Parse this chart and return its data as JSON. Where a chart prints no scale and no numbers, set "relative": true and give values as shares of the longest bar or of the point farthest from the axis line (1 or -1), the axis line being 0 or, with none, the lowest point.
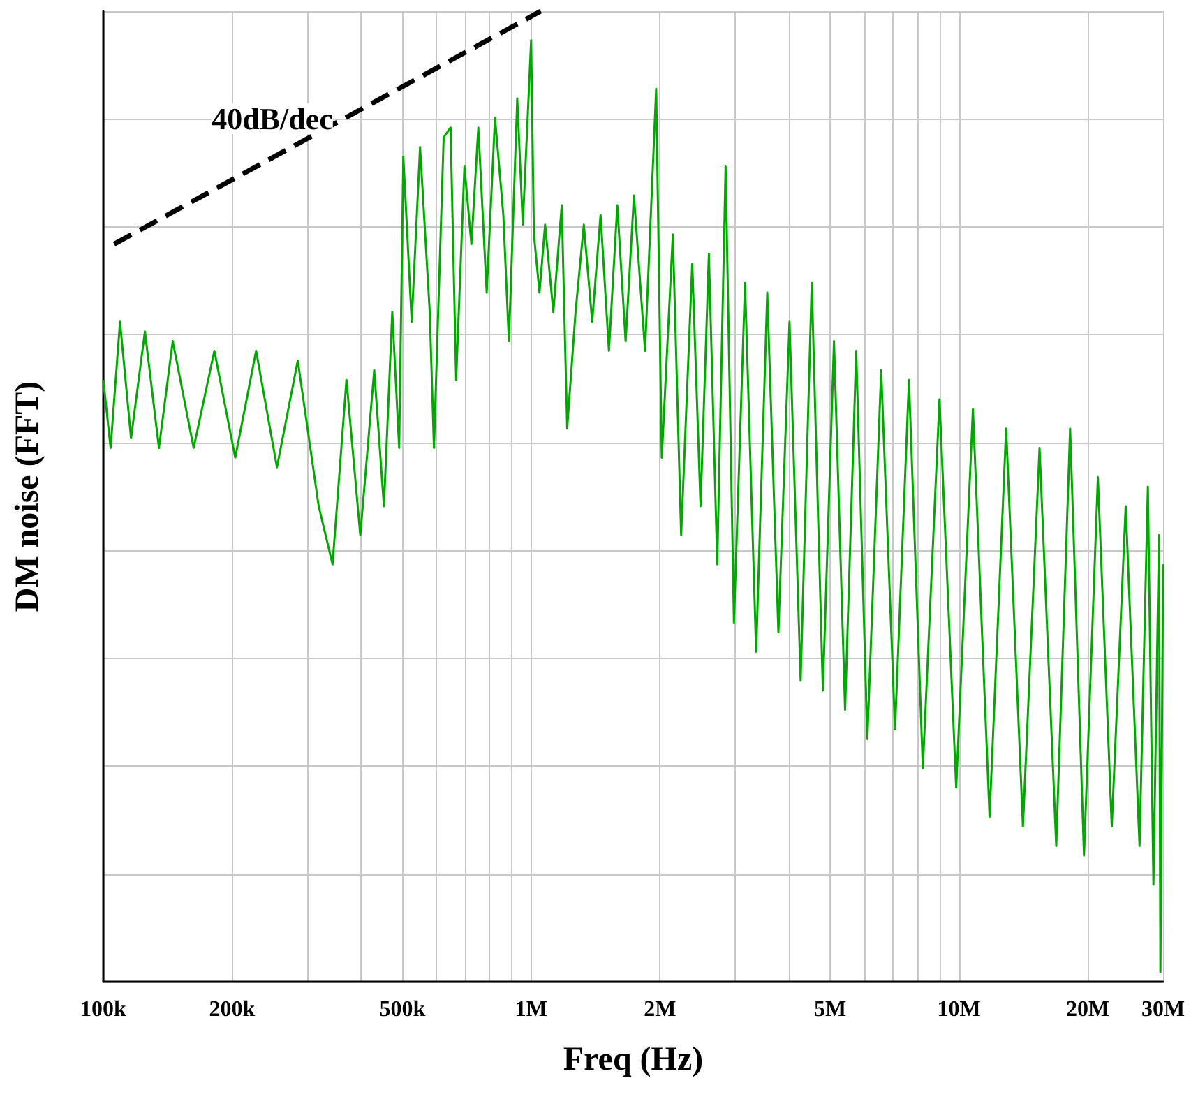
{
  "chart_data": {
    "type": "line",
    "relative": true,
    "xlabel": "Freq (Hz)",
    "ylabel": "DM noise (FFT)",
    "log": "x",
    "grid": true,
    "marker": "none",
    "xlim": [
      100000,
      30000000
    ],
    "xticks": [
      {
        "value": 100000,
        "label": "100k"
      },
      {
        "value": 200000,
        "label": "200k"
      },
      {
        "value": 300000,
        "label": null
      },
      {
        "value": 400000,
        "label": null
      },
      {
        "value": 500000,
        "label": "500k"
      },
      {
        "value": 600000,
        "label": null
      },
      {
        "value": 700000,
        "label": null
      },
      {
        "value": 800000,
        "label": null
      },
      {
        "value": 900000,
        "label": null
      },
      {
        "value": 1000000,
        "label": "1M"
      },
      {
        "value": 2000000,
        "label": "2M"
      },
      {
        "value": 3000000,
        "label": null
      },
      {
        "value": 4000000,
        "label": null
      },
      {
        "value": 5000000,
        "label": "5M"
      },
      {
        "value": 6000000,
        "label": null
      },
      {
        "value": 7000000,
        "label": null
      },
      {
        "value": 8000000,
        "label": null
      },
      {
        "value": 9000000,
        "label": null
      },
      {
        "value": 10000000,
        "label": "10M"
      },
      {
        "value": 20000000,
        "label": "20M"
      },
      {
        "value": 30000000,
        "label": "30M"
      }
    ],
    "annotations": [
      "40dB/dec"
    ],
    "series": [
      {
        "color": "#00a800",
        "line_style": "solid",
        "x": [
          100000,
          104000,
          109400,
          116100,
          125100,
          134900,
          145300,
          162600,
          181800,
          203400,
          227600,
          254600,
          284800,
          318700,
          343400,
          370100,
          398700,
          429700,
          452800,
          473600,
          491500,
          502600,
          525800,
          550000,
          579400,
          592700,
          624500,
          648100,
          667800,
          698400,
          725000,
          752600,
          787200,
          823300,
          861000,
          887200,
          928000,
          956100,
          1000000,
          1015000,
          1046000,
          1078000,
          1127000,
          1179000,
          1214000,
          1270000,
          1328000,
          1389000,
          1453000,
          1520000,
          1590000,
          1663000,
          1739000,
          1846000,
          1960000,
          2020000,
          2144000,
          2242000,
          2380000,
          2489000,
          2603000,
          2723000,
          2848000,
          2979000,
          3162000,
          3357000,
          3564000,
          3784000,
          4017000,
          4265000,
          4528000,
          4807000,
          5104000,
          5418000,
          5752000,
          6107000,
          6579000,
          7089000,
          7640000,
          8233000,
          9005000,
          9851000,
          10780000,
          11790000,
          12890000,
          14110000,
          15430000,
          16880000,
          18190000,
          19600000,
          21120000,
          22760000,
          24530000,
          26430000,
          27640000,
          28480000,
          29350000,
          29570000,
          30000000
        ],
        "values": [
          0.62,
          0.55,
          0.68,
          0.56,
          0.67,
          0.55,
          0.66,
          0.55,
          0.65,
          0.54,
          0.65,
          0.53,
          0.64,
          0.49,
          0.43,
          0.62,
          0.46,
          0.63,
          0.49,
          0.69,
          0.55,
          0.85,
          0.68,
          0.86,
          0.69,
          0.55,
          0.87,
          0.88,
          0.62,
          0.84,
          0.76,
          0.88,
          0.71,
          0.89,
          0.79,
          0.66,
          0.91,
          0.78,
          0.97,
          0.77,
          0.71,
          0.78,
          0.69,
          0.8,
          0.57,
          0.69,
          0.78,
          0.68,
          0.79,
          0.65,
          0.8,
          0.66,
          0.81,
          0.65,
          0.92,
          0.54,
          0.77,
          0.46,
          0.74,
          0.49,
          0.75,
          0.43,
          0.84,
          0.37,
          0.72,
          0.34,
          0.71,
          0.36,
          0.68,
          0.31,
          0.72,
          0.3,
          0.66,
          0.28,
          0.65,
          0.25,
          0.63,
          0.26,
          0.62,
          0.22,
          0.6,
          0.2,
          0.59,
          0.17,
          0.57,
          0.16,
          0.55,
          0.14,
          0.57,
          0.13,
          0.52,
          0.16,
          0.49,
          0.14,
          0.51,
          0.1,
          0.46,
          0.01,
          0.43
        ]
      },
      {
        "color": "#000000",
        "line_style": "dashed",
        "x": [
          106000,
          1053000
        ],
        "values": [
          0.76,
          1
        ]
      }
    ]
  }
}
